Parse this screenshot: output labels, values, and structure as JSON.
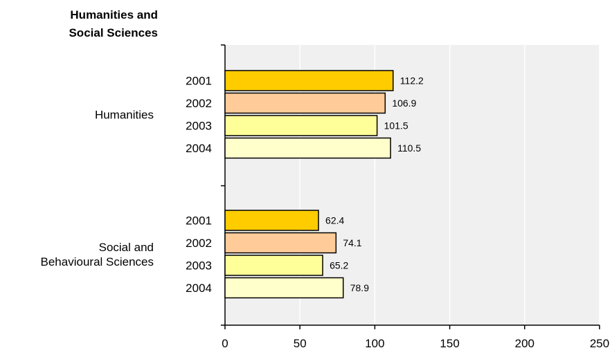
{
  "title_lines": [
    "Humanities and",
    "Social Sciences"
  ],
  "chart_data": {
    "type": "bar",
    "orientation": "horizontal",
    "title": "Humanities and Social Sciences",
    "xlabel": "",
    "ylabel": "",
    "xlim": [
      0,
      250
    ],
    "x_ticks": [
      0,
      50,
      100,
      150,
      200,
      250
    ],
    "grid": "vertical",
    "groups": [
      {
        "label_lines": [
          "Humanities"
        ],
        "bars": [
          {
            "year": "2001",
            "value": 112.2,
            "label": "112.2"
          },
          {
            "year": "2002",
            "value": 106.9,
            "label": "106.9"
          },
          {
            "year": "2003",
            "value": 101.5,
            "label": "101.5"
          },
          {
            "year": "2004",
            "value": 110.5,
            "label": "110.5"
          }
        ]
      },
      {
        "label_lines": [
          "Social and",
          "Behavioural Sciences"
        ],
        "bars": [
          {
            "year": "2001",
            "value": 62.4,
            "label": "62.4"
          },
          {
            "year": "2002",
            "value": 74.1,
            "label": "74.1"
          },
          {
            "year": "2003",
            "value": 65.2,
            "label": "65.2"
          },
          {
            "year": "2004",
            "value": 78.9,
            "label": "78.9"
          }
        ]
      }
    ],
    "series_colors": {
      "2001": "#ffcc00",
      "2002": "#ffcc99",
      "2003": "#ffff99",
      "2004": "#ffffcc"
    },
    "plot_background": "#f0f0f0",
    "grid_color": "#ffffff"
  }
}
